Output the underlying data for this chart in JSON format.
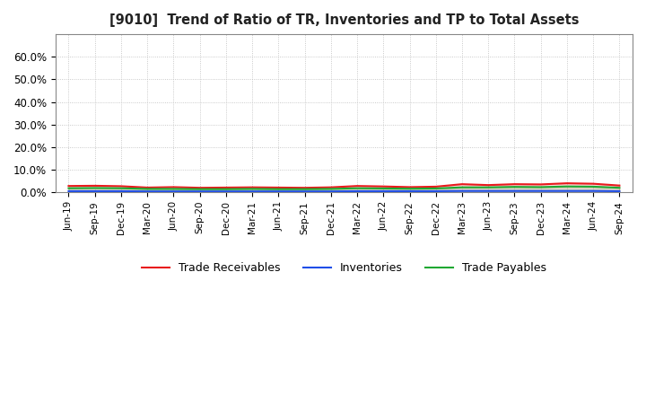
{
  "title": "[9010]  Trend of Ratio of TR, Inventories and TP to Total Assets",
  "x_labels": [
    "Jun-19",
    "Sep-19",
    "Dec-19",
    "Mar-20",
    "Jun-20",
    "Sep-20",
    "Dec-20",
    "Mar-21",
    "Jun-21",
    "Sep-21",
    "Dec-21",
    "Mar-22",
    "Jun-22",
    "Sep-22",
    "Dec-22",
    "Mar-23",
    "Jun-23",
    "Sep-23",
    "Dec-23",
    "Mar-24",
    "Jun-24",
    "Sep-24"
  ],
  "trade_receivables": [
    2.8,
    2.9,
    2.7,
    2.1,
    2.3,
    2.0,
    2.1,
    2.2,
    2.1,
    2.0,
    2.2,
    2.8,
    2.6,
    2.3,
    2.5,
    3.6,
    3.2,
    3.6,
    3.5,
    4.0,
    3.8,
    3.0
  ],
  "inventories": [
    0.5,
    0.5,
    0.5,
    0.4,
    0.4,
    0.4,
    0.4,
    0.4,
    0.4,
    0.4,
    0.4,
    0.5,
    0.5,
    0.5,
    0.5,
    0.6,
    0.6,
    0.6,
    0.6,
    0.6,
    0.6,
    0.5
  ],
  "trade_payables": [
    1.8,
    1.9,
    1.8,
    1.5,
    1.5,
    1.4,
    1.4,
    1.5,
    1.4,
    1.4,
    1.5,
    1.8,
    1.7,
    1.6,
    1.7,
    2.2,
    2.2,
    2.4,
    2.3,
    2.6,
    2.5,
    2.0
  ],
  "color_tr": "#e8191c",
  "color_inv": "#1f4ee8",
  "color_tp": "#1fa832",
  "ylim": [
    0,
    70
  ],
  "yticks": [
    0,
    10,
    20,
    30,
    40,
    50,
    60
  ],
  "ytick_labels": [
    "0.0%",
    "10.0%",
    "20.0%",
    "30.0%",
    "40.0%",
    "50.0%",
    "60.0%"
  ],
  "background_color": "#ffffff",
  "plot_bg_color": "#ffffff",
  "grid_color": "#bbbbbb",
  "legend_labels": [
    "Trade Receivables",
    "Inventories",
    "Trade Payables"
  ],
  "linewidth": 1.5
}
